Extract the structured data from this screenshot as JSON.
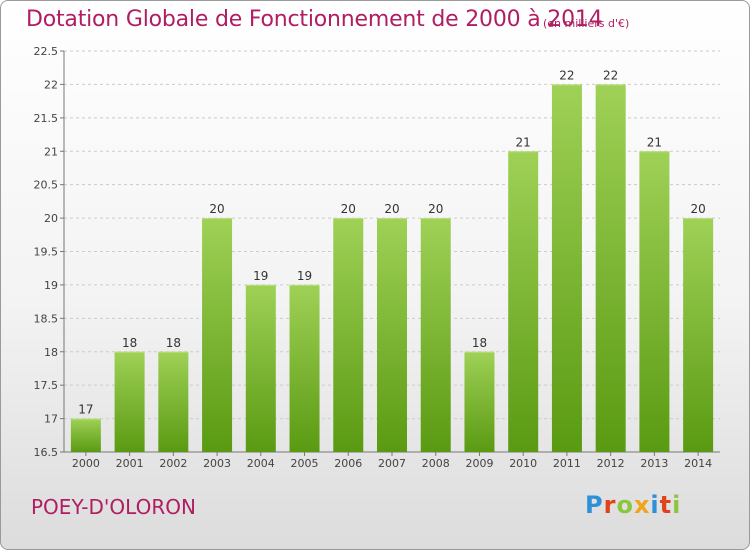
{
  "title": "Dotation Globale de Fonctionnement de 2000 à 2014",
  "unit_note": "(en milliers d'€)",
  "place_name": "POEY-D'OLORON",
  "logo": {
    "text": "Proxiti",
    "colors": [
      "#2f8fd8",
      "#e0431b",
      "#8cc63e",
      "#f2a51c",
      "#2f8fd8",
      "#e0431b",
      "#8cc63e"
    ]
  },
  "colors": {
    "title": "#b01d62",
    "bar_top": "#9fd157",
    "bar_bottom": "#5a9a12",
    "grid": "#cccccc"
  },
  "chart_data": {
    "type": "bar",
    "categories": [
      "2000",
      "2001",
      "2002",
      "2003",
      "2004",
      "2005",
      "2006",
      "2007",
      "2008",
      "2009",
      "2010",
      "2011",
      "2012",
      "2013",
      "2014"
    ],
    "values": [
      17,
      18,
      18,
      20,
      19,
      19,
      20,
      20,
      20,
      18,
      21,
      22,
      22,
      21,
      20
    ],
    "data_labels": [
      "17",
      "18",
      "18",
      "20",
      "19",
      "19",
      "20",
      "20",
      "20",
      "18",
      "21",
      "22",
      "22",
      "21",
      "20"
    ],
    "ylim": [
      16.5,
      22.5
    ],
    "yticks": [
      "16.5",
      "17",
      "17.5",
      "18",
      "18.5",
      "19",
      "19.5",
      "20",
      "20.5",
      "21",
      "21.5",
      "22",
      "22.5"
    ],
    "grid": true
  }
}
